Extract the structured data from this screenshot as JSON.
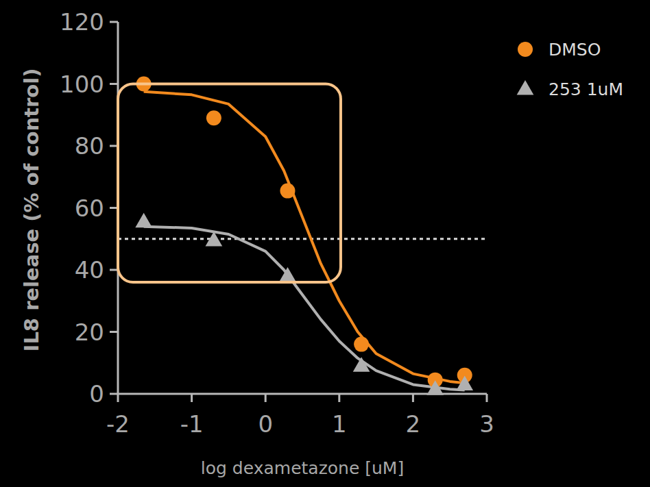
{
  "chart_data": {
    "type": "scatter",
    "x_label": "log dexametazone [uM]",
    "y_label": "IL8 release (% of control)",
    "x": [
      -1.65,
      -0.7,
      0.3,
      1.3,
      2.3,
      2.7
    ],
    "series": [
      {
        "name": "DMSO",
        "color": "#f28a1e",
        "marker": "circle",
        "values": [
          100,
          89,
          65.5,
          16,
          4.5,
          6
        ],
        "curve": {
          "x": [
            -1.65,
            -1,
            -0.5,
            0,
            0.25,
            0.5,
            0.75,
            1,
            1.25,
            1.5,
            2,
            2.5,
            2.7
          ],
          "values": [
            97.5,
            96.5,
            93.5,
            83,
            72,
            57,
            42,
            30,
            20,
            13,
            6.5,
            4,
            3.5
          ]
        }
      },
      {
        "name": "253 1uM",
        "color": "#b0b0b0",
        "marker": "triangle",
        "values": [
          55.5,
          49.5,
          38,
          9,
          1.5,
          3
        ],
        "curve": {
          "x": [
            -1.65,
            -1,
            -0.5,
            0,
            0.25,
            0.5,
            0.75,
            1,
            1.25,
            1.5,
            2,
            2.5,
            2.7
          ],
          "values": [
            54,
            53.5,
            51.5,
            46,
            40,
            32,
            24,
            17,
            11.5,
            7.5,
            3,
            1.5,
            1.2
          ]
        }
      }
    ],
    "reference_line": 50,
    "highlight": {
      "x": [
        -2,
        1.02
      ],
      "y": [
        36,
        100
      ]
    },
    "xlim": [
      -2,
      3
    ],
    "ylim": [
      0,
      120
    ],
    "xticks": [
      -2,
      -1,
      0,
      1,
      2,
      3
    ],
    "yticks": [
      0,
      20,
      40,
      60,
      80,
      100,
      120
    ],
    "grid": false,
    "legend": "top-right"
  }
}
